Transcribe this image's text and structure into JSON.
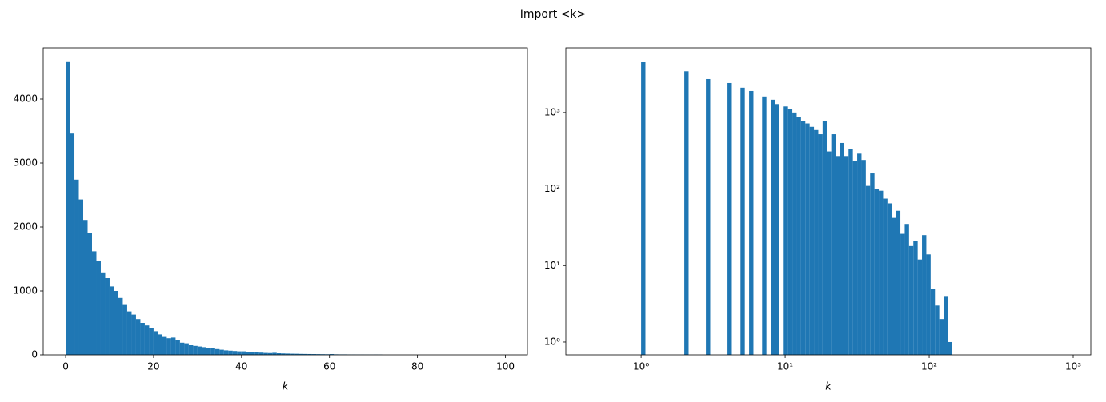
{
  "title": "Import <k>",
  "chart_data": [
    {
      "type": "histogram",
      "xlabel": "k",
      "color": "#1f77b4",
      "xscale": "linear",
      "yscale": "linear",
      "xlim": [
        -5.1,
        105
      ],
      "ylim": [
        0,
        4800
      ],
      "xticks": [
        0,
        20,
        40,
        60,
        80,
        100
      ],
      "yticks": [
        0,
        1000,
        2000,
        3000,
        4000
      ],
      "bins": [
        0,
        1,
        2,
        3,
        4,
        5,
        6,
        7,
        8,
        9,
        10,
        11,
        12,
        13,
        14,
        15,
        16,
        17,
        18,
        19,
        20,
        21,
        22,
        23,
        24,
        25,
        26,
        27,
        28,
        29,
        30,
        31,
        32,
        33,
        34,
        35,
        36,
        37,
        38,
        39,
        40,
        41,
        42,
        43,
        44,
        45,
        46,
        47,
        48,
        49,
        50,
        51,
        52,
        53,
        54,
        55,
        56,
        57,
        58,
        59,
        60,
        61,
        62,
        63,
        64,
        65,
        66,
        67,
        68,
        69,
        70,
        71,
        72,
        73,
        74,
        75,
        76,
        77,
        78,
        79,
        80,
        81,
        82,
        83,
        84,
        85,
        86,
        87,
        88,
        89,
        90,
        91,
        92,
        93,
        94,
        95,
        96,
        97,
        98,
        99,
        100
      ],
      "values": [
        4590,
        3460,
        2740,
        2430,
        2110,
        1910,
        1620,
        1470,
        1290,
        1200,
        1070,
        1000,
        890,
        780,
        680,
        630,
        560,
        500,
        460,
        420,
        370,
        320,
        280,
        260,
        270,
        230,
        190,
        180,
        150,
        140,
        130,
        120,
        110,
        100,
        90,
        80,
        70,
        65,
        60,
        55,
        55,
        45,
        40,
        38,
        35,
        30,
        28,
        32,
        25,
        22,
        20,
        18,
        17,
        15,
        14,
        13,
        12,
        11,
        10,
        9,
        12,
        8,
        7,
        7,
        6,
        6,
        5,
        5,
        4,
        4,
        5,
        4,
        0,
        0,
        0,
        0,
        0,
        0,
        0,
        0,
        0,
        0,
        0,
        0,
        0,
        0,
        0,
        0,
        0,
        0,
        0,
        0,
        0,
        0,
        0,
        0,
        0,
        0,
        0,
        0
      ]
    },
    {
      "type": "histogram",
      "xlabel": "k",
      "color": "#1f77b4",
      "xscale": "log",
      "yscale": "log",
      "xlim": [
        0.3,
        1325
      ],
      "ylim": [
        0.68,
        7000
      ],
      "xticks": [
        {
          "value": 1,
          "label": "10⁰"
        },
        {
          "value": 10,
          "label": "10¹"
        },
        {
          "value": 100,
          "label": "10²"
        },
        {
          "value": 1000,
          "label": "10³"
        }
      ],
      "yticks": [
        {
          "value": 1,
          "label": "10⁰"
        },
        {
          "value": 10,
          "label": "10¹"
        },
        {
          "value": 100,
          "label": "10²"
        },
        {
          "value": 1000,
          "label": "10³"
        }
      ],
      "bins": [
        1,
        1.0715,
        1.1482,
        1.2303,
        1.3183,
        1.4125,
        1.5136,
        1.6218,
        1.7378,
        1.8621,
        1.9953,
        2.138,
        2.2909,
        2.4547,
        2.6303,
        2.8184,
        3.02,
        3.2359,
        3.4674,
        3.7154,
        3.9811,
        4.2658,
        4.5709,
        4.8978,
        5.2481,
        5.6234,
        6.0256,
        6.4565,
        6.9183,
        7.4131,
        7.9433,
        8.5114,
        9.1201,
        9.7724,
        10.4713,
        11.2202,
        12.0226,
        12.8825,
        13.8038,
        14.7911,
        15.8489,
        16.9824,
        18.197,
        19.4984,
        20.893,
        22.3872,
        23.9883,
        25.704,
        27.5423,
        29.5121,
        31.6228,
        33.8844,
        36.3078,
        38.9045,
        41.6869,
        44.6684,
        47.863,
        51.2861,
        54.9541,
        58.8844,
        63.0957,
        67.6083,
        72.4436,
        77.6247,
        83.1764,
        89.1251,
        95.4993,
        102.3293,
        109.6478,
        117.4898,
        125.8925,
        134.8963,
        144.544,
        154.8817,
        165.9587,
        177.8279,
        190.5461,
        204.1738,
        218.7762,
        234.4229,
        251.1886,
        269.1535,
        288.4032,
        309.0295,
        331.1311,
        354.8134,
        380.1894,
        407.3803,
        436.5158,
        467.7351,
        501.1872,
        537.0318,
        575.4399,
        616.595,
        660.6934,
        707.9458,
        758.5776,
        812.8305,
        870.9636,
        933.2543,
        1000
      ],
      "values": [
        4590,
        0,
        0,
        0,
        0,
        0,
        0,
        0,
        0,
        0,
        3460,
        0,
        0,
        0,
        0,
        2740,
        0,
        0,
        0,
        0,
        2430,
        0,
        0,
        2110,
        0,
        1910,
        0,
        0,
        1620,
        0,
        1470,
        1290,
        0,
        1200,
        1100,
        1000,
        880,
        780,
        720,
        650,
        590,
        520,
        780,
        310,
        520,
        270,
        400,
        270,
        330,
        230,
        290,
        240,
        110,
        160,
        100,
        95,
        75,
        65,
        42,
        52,
        26,
        35,
        18,
        21,
        12,
        25,
        14,
        5,
        3,
        2,
        4,
        1,
        0,
        0,
        0,
        0,
        0,
        0,
        0,
        0,
        0,
        0,
        0,
        0,
        0,
        0,
        0,
        0,
        0,
        0,
        0,
        0,
        0,
        0,
        0,
        0,
        0,
        0,
        0,
        0
      ]
    }
  ]
}
